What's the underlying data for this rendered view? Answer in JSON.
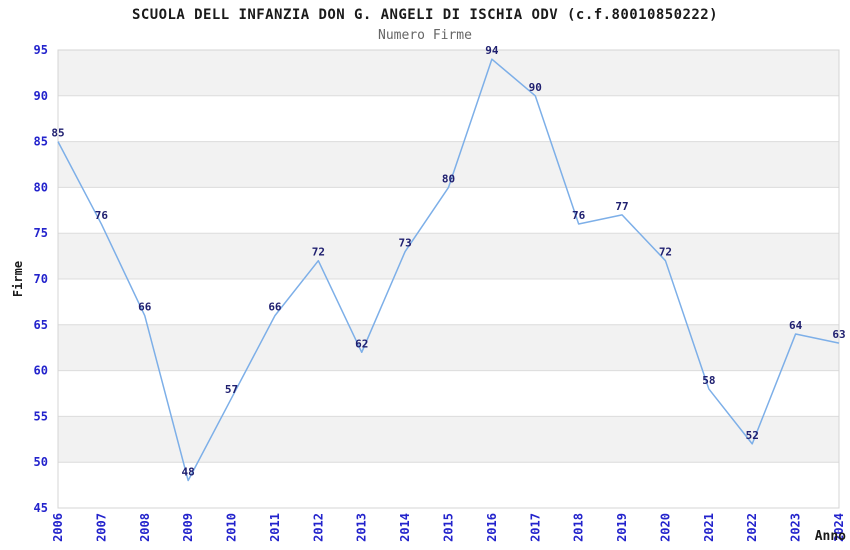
{
  "chart_data": {
    "type": "line",
    "title": "SCUOLA DELL INFANZIA DON G. ANGELI DI ISCHIA ODV (c.f.80010850222)",
    "subtitle": "Numero Firme",
    "xlabel": "Anno",
    "ylabel": "Firme",
    "categories": [
      "2006",
      "2007",
      "2008",
      "2009",
      "2010",
      "2011",
      "2012",
      "2013",
      "2014",
      "2015",
      "2016",
      "2017",
      "2018",
      "2019",
      "2020",
      "2021",
      "2022",
      "2023",
      "2024"
    ],
    "values": [
      85,
      76,
      66,
      48,
      57,
      66,
      72,
      62,
      73,
      80,
      94,
      90,
      76,
      77,
      72,
      58,
      52,
      64,
      63
    ],
    "ylim": [
      45,
      95
    ],
    "ytick_step": 5,
    "grid": true,
    "legend": "none",
    "point_labels_visible": true,
    "colors": {
      "line": "#7dafe8",
      "point_label": "#202070",
      "tick_label": "#2323cc",
      "title": "#1a1a1a",
      "subtitle": "#666666",
      "axis_label": "#1a1a1a",
      "band_fill": "#f2f2f2",
      "grid_line": "#dcdcdc",
      "plot_border": "#d4d4d4",
      "background": "#ffffff"
    }
  }
}
